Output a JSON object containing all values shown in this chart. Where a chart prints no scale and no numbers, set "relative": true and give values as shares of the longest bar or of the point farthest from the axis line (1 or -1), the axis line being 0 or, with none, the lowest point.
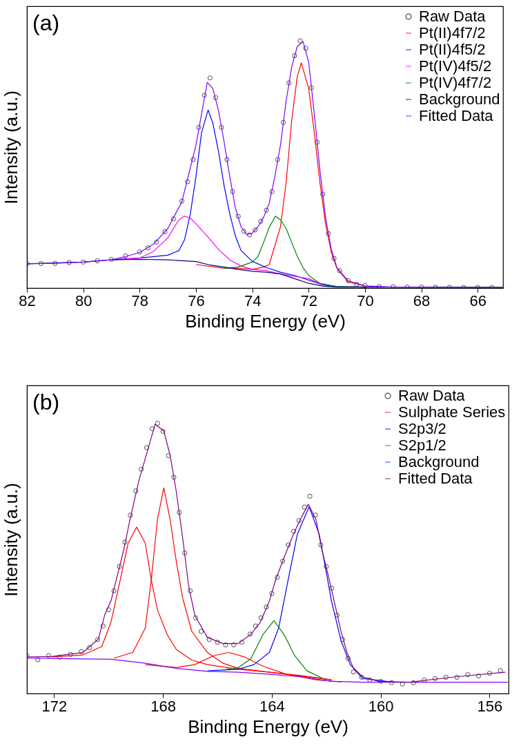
{
  "chart_data": [
    {
      "type": "line",
      "relative": true,
      "xlabel": "Binding Energy (eV)",
      "ylabel": "Intensity (a.u.)",
      "annotations": [
        "(a)"
      ],
      "xlim": [
        82,
        65.1
      ],
      "xticks": [
        82,
        80,
        78,
        76,
        74,
        72,
        70,
        68,
        66
      ],
      "legend": "top right",
      "series": [
        {
          "name": "Raw Data",
          "type": "scatter",
          "marker": "circle",
          "color": "#000000",
          "x": [
            82,
            81.5,
            81,
            80.5,
            80,
            79.5,
            79,
            78.5,
            78,
            77.7,
            77.4,
            77.1,
            76.8,
            76.5,
            76.3,
            76.1,
            75.9,
            75.7,
            75.5,
            75.3,
            75.1,
            74.9,
            74.7,
            74.5,
            74.3,
            74.1,
            73.9,
            73.7,
            73.5,
            73.3,
            73.1,
            72.9,
            72.7,
            72.5,
            72.3,
            72.1,
            71.9,
            71.7,
            71.5,
            71.3,
            71.1,
            70.9,
            70.6,
            70.3,
            70,
            69.5,
            69,
            68.5,
            68,
            67.5,
            67,
            66.5,
            66,
            65.5
          ],
          "values": [
            0.098,
            0.099,
            0.1,
            0.103,
            0.105,
            0.11,
            0.116,
            0.13,
            0.146,
            0.163,
            0.186,
            0.228,
            0.28,
            0.352,
            0.43,
            0.52,
            0.65,
            0.78,
            0.85,
            0.77,
            0.65,
            0.52,
            0.39,
            0.29,
            0.23,
            0.215,
            0.235,
            0.27,
            0.315,
            0.39,
            0.52,
            0.67,
            0.83,
            0.94,
            1.0,
            0.97,
            0.81,
            0.59,
            0.38,
            0.22,
            0.12,
            0.07,
            0.03,
            0.015,
            0.01,
            0.006,
            0.005,
            0.004,
            0.004,
            0.003,
            0.003,
            0.002,
            0.002,
            0.002
          ]
        },
        {
          "name": "Pt(II)4f7/2",
          "color": "#ff0000",
          "x": [
            76,
            75,
            74.5,
            74,
            73.6,
            73.4,
            73,
            72.8,
            72.6,
            72.4,
            72.26,
            72,
            71.8,
            71.6,
            71.4,
            71.2,
            71,
            70.6,
            70
          ],
          "values": [
            0.095,
            0.08,
            0.08,
            0.076,
            0.085,
            0.095,
            0.248,
            0.426,
            0.68,
            0.858,
            0.911,
            0.807,
            0.629,
            0.426,
            0.26,
            0.146,
            0.08,
            0.025,
            0.008
          ]
        },
        {
          "name": "Pt(II)4f5/2",
          "color": "#0000ff",
          "x": [
            79,
            78,
            77,
            76.6,
            76.4,
            76.2,
            76,
            75.8,
            75.57,
            75.4,
            75.2,
            75,
            74.8,
            74.6,
            74.4,
            74,
            73.5,
            73,
            72.5,
            72,
            71.5,
            71,
            70
          ],
          "values": [
            0.114,
            0.121,
            0.133,
            0.152,
            0.197,
            0.3,
            0.451,
            0.629,
            0.72,
            0.667,
            0.553,
            0.413,
            0.3,
            0.21,
            0.152,
            0.108,
            0.083,
            0.064,
            0.051,
            0.032,
            0.013,
            0.006,
            0.004
          ]
        },
        {
          "name": "Pt(IV)4f5/2",
          "color": "#ff00ff",
          "x": [
            79,
            78,
            77.5,
            77,
            76.8,
            76.6,
            76.41,
            76.2,
            76,
            75.6,
            75.2,
            74.8,
            74.4,
            74,
            73.5,
            73,
            72,
            71.5
          ],
          "values": [
            0.114,
            0.121,
            0.149,
            0.203,
            0.241,
            0.276,
            0.291,
            0.283,
            0.26,
            0.21,
            0.156,
            0.114,
            0.089,
            0.076,
            0.07,
            0.057,
            0.038,
            0.013
          ]
        },
        {
          "name": "Pt(IV)4f7/2",
          "color": "#008000",
          "x": [
            75,
            74.5,
            74,
            73.8,
            73.6,
            73.4,
            73.18,
            73,
            72.8,
            72.6,
            72.4,
            72.2,
            72,
            71.6,
            71,
            70
          ],
          "values": [
            0.08,
            0.085,
            0.105,
            0.127,
            0.184,
            0.245,
            0.291,
            0.276,
            0.241,
            0.184,
            0.127,
            0.083,
            0.051,
            0.019,
            0.006,
            0.004
          ]
        },
        {
          "name": "Background",
          "color": "#000080",
          "x": [
            82,
            80,
            79,
            78,
            77,
            76,
            75.5,
            75,
            74.5,
            74,
            73.5,
            73,
            72.5,
            72,
            71.5,
            71,
            65.1
          ],
          "values": [
            0.098,
            0.105,
            0.114,
            0.116,
            0.114,
            0.107,
            0.093,
            0.085,
            0.075,
            0.068,
            0.064,
            0.057,
            0.038,
            0.019,
            0.008,
            0.004,
            0.003
          ]
        },
        {
          "name": "Fitted Data",
          "color": "#8000ff",
          "x": [
            82,
            81,
            80,
            79,
            78.5,
            78,
            77.5,
            77,
            76.5,
            76,
            75.8,
            75.6,
            75.4,
            75.2,
            75,
            74.8,
            74.6,
            74.4,
            74.2,
            74,
            73.8,
            73.6,
            73.4,
            73.2,
            73,
            72.8,
            72.6,
            72.4,
            72.2,
            72,
            71.8,
            71.6,
            71.4,
            71.2,
            71,
            70.6,
            70,
            69,
            68,
            66,
            65.1
          ],
          "values": [
            0.098,
            0.1,
            0.105,
            0.114,
            0.127,
            0.144,
            0.178,
            0.241,
            0.349,
            0.578,
            0.705,
            0.832,
            0.807,
            0.718,
            0.591,
            0.451,
            0.324,
            0.248,
            0.216,
            0.222,
            0.248,
            0.286,
            0.343,
            0.451,
            0.578,
            0.756,
            0.896,
            0.978,
            0.997,
            0.915,
            0.705,
            0.476,
            0.286,
            0.159,
            0.083,
            0.029,
            0.009,
            0.004,
            0.003,
            0.001,
            0.001
          ]
        }
      ]
    },
    {
      "type": "line",
      "relative": true,
      "xlabel": "Binding Energy (eV)",
      "ylabel": "Intensity (a.u.)",
      "annotations": [
        "(b)"
      ],
      "xlim": [
        173,
        155.3
      ],
      "xticks": [
        172,
        168,
        164,
        160,
        156
      ],
      "legend": "top right",
      "series": [
        {
          "name": "Raw Data",
          "type": "scatter",
          "marker": "circle",
          "color": "#000000",
          "x": [
            173,
            172.6,
            172.2,
            171.8,
            171.4,
            171,
            170.7,
            170.4,
            170.2,
            170,
            169.8,
            169.6,
            169.4,
            169.2,
            169,
            168.8,
            168.6,
            168.4,
            168.2,
            168,
            167.8,
            167.6,
            167.4,
            167.2,
            167,
            166.8,
            166.6,
            166.3,
            166,
            165.7,
            165.4,
            165.1,
            164.8,
            164.6,
            164.4,
            164.2,
            164,
            163.8,
            163.6,
            163.4,
            163.2,
            163,
            162.8,
            162.6,
            162.4,
            162.2,
            162,
            161.8,
            161.6,
            161.4,
            161.2,
            161,
            160.7,
            160.4,
            160,
            159.6,
            159.2,
            158.8,
            158.4,
            158,
            157.6,
            157.2,
            156.8,
            156.4,
            156,
            155.6
          ],
          "values": [
            0.14,
            0.125,
            0.14,
            0.135,
            0.145,
            0.155,
            0.17,
            0.2,
            0.25,
            0.31,
            0.38,
            0.47,
            0.56,
            0.66,
            0.75,
            0.83,
            0.91,
            0.98,
            1.0,
            0.97,
            0.88,
            0.8,
            0.67,
            0.52,
            0.38,
            0.28,
            0.23,
            0.2,
            0.19,
            0.18,
            0.18,
            0.19,
            0.22,
            0.25,
            0.28,
            0.32,
            0.37,
            0.43,
            0.49,
            0.55,
            0.6,
            0.64,
            0.69,
            0.73,
            0.66,
            0.55,
            0.47,
            0.39,
            0.29,
            0.2,
            0.13,
            0.08,
            0.06,
            0.05,
            0.045,
            0.04,
            0.035,
            0.04,
            0.05,
            0.055,
            0.06,
            0.06,
            0.07,
            0.065,
            0.075,
            0.085
          ]
        },
        {
          "name": "Sulphate Series",
          "color": "#ff0000",
          "x": [
            172.08,
            170.94,
            170.25,
            169.91,
            169.57,
            169.28,
            168.97,
            168.65,
            168.43,
            168.2,
            167.85,
            167.51,
            166.94,
            166.37,
            165.23,
            164.09,
            162.95,
            161.81
          ],
          "values": [
            0.135,
            0.143,
            0.174,
            0.264,
            0.421,
            0.556,
            0.616,
            0.556,
            0.421,
            0.309,
            0.219,
            0.163,
            0.124,
            0.107,
            0.09,
            0.079,
            0.067,
            0.051
          ]
        },
        {
          "color": "#ff0000",
          "x": [
            169.8,
            169.11,
            168.65,
            168.43,
            168.2,
            167.97,
            167.74,
            167.51,
            167.28,
            166.94,
            166.37,
            165.8,
            165.23,
            164.09,
            161.81
          ],
          "values": [
            0.131,
            0.152,
            0.242,
            0.421,
            0.646,
            0.761,
            0.646,
            0.489,
            0.354,
            0.23,
            0.152,
            0.112,
            0.093,
            0.079,
            0.051
          ]
        },
        {
          "color": "#ff0000",
          "x": [
            168.65,
            167.51,
            166.83,
            166.14,
            165.57,
            165.0,
            164.32,
            163.52,
            162.38,
            161.46
          ],
          "values": [
            0.107,
            0.096,
            0.107,
            0.14,
            0.152,
            0.135,
            0.101,
            0.073,
            0.051,
            0.043
          ]
        },
        {
          "name": "S2p3/2",
          "color": "#0000ff",
          "x": [
            166.37,
            165.23,
            164.66,
            164.09,
            163.75,
            163.4,
            163.06,
            162.63,
            162.26,
            162.03,
            161.81,
            161.46,
            161.12,
            160.67,
            159.52
          ],
          "values": [
            0.084,
            0.09,
            0.107,
            0.152,
            0.242,
            0.421,
            0.59,
            0.691,
            0.59,
            0.466,
            0.343,
            0.197,
            0.107,
            0.056,
            0.042
          ]
        },
        {
          "name": "S2p1/2",
          "color": "#008000",
          "x": [
            165.8,
            165.23,
            164.77,
            164.32,
            163.92,
            163.52,
            163.16,
            162.71,
            162.03
          ],
          "values": [
            0.087,
            0.096,
            0.129,
            0.219,
            0.27,
            0.213,
            0.14,
            0.084,
            0.051
          ]
        },
        {
          "name": "Background",
          "color": "#8000ff",
          "x": [
            173,
            171.51,
            169.91,
            168.65,
            167.51,
            166.37,
            165.23,
            164.09,
            162.95,
            161.81,
            160.67,
            158.38,
            155.33
          ],
          "values": [
            0.131,
            0.129,
            0.127,
            0.112,
            0.093,
            0.082,
            0.079,
            0.071,
            0.062,
            0.045,
            0.042,
            0.042,
            0.042
          ]
        },
        {
          "name": "Fitted Data",
          "color": "#800080",
          "x": [
            173,
            172.08,
            170.94,
            170.37,
            170.14,
            169.91,
            169.45,
            169.22,
            168.88,
            168.65,
            168.29,
            167.97,
            167.74,
            167.51,
            167.28,
            167.06,
            166.83,
            166.37,
            165.8,
            165.23,
            164.77,
            164.43,
            164.09,
            163.86,
            163.52,
            163.16,
            162.95,
            162.66,
            162.38,
            162.15,
            161.92,
            161.69,
            161.46,
            161.24,
            161.01,
            160.67,
            160.09,
            158.95,
            157.24,
            155.42
          ],
          "values": [
            0.135,
            0.137,
            0.152,
            0.202,
            0.291,
            0.343,
            0.528,
            0.64,
            0.79,
            0.87,
            0.996,
            0.972,
            0.882,
            0.747,
            0.579,
            0.4,
            0.289,
            0.208,
            0.185,
            0.185,
            0.219,
            0.263,
            0.342,
            0.421,
            0.511,
            0.6,
            0.645,
            0.7,
            0.645,
            0.527,
            0.434,
            0.333,
            0.231,
            0.152,
            0.096,
            0.062,
            0.045,
            0.042,
            0.062,
            0.079
          ]
        }
      ]
    }
  ]
}
